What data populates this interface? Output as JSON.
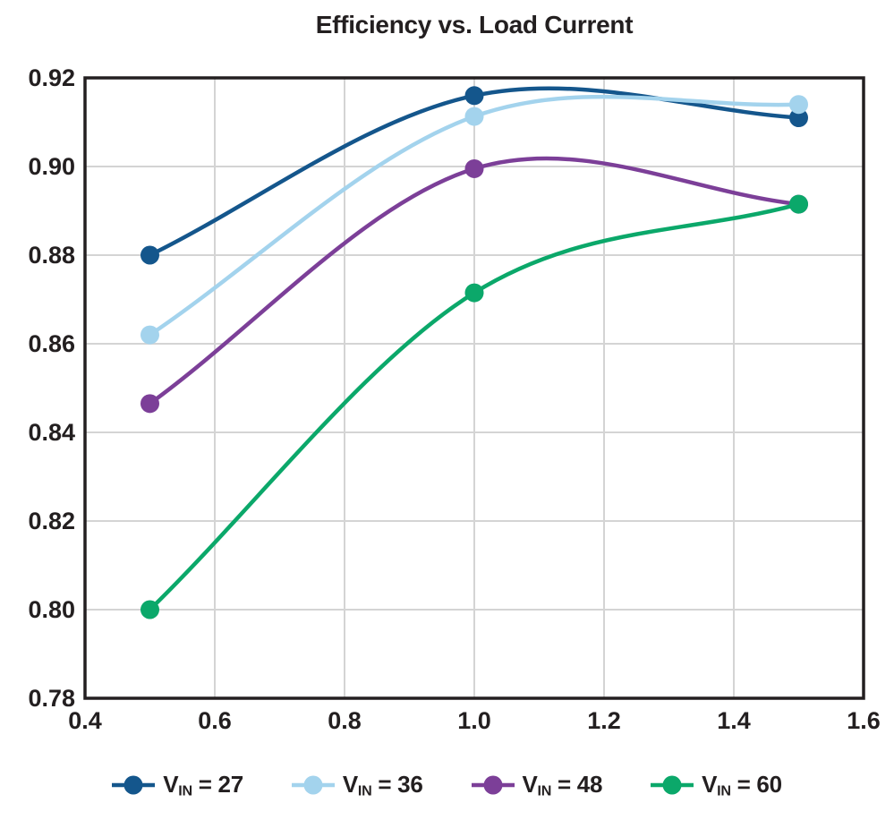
{
  "chart_data": {
    "type": "line",
    "title": "Efficiency vs. Load Current",
    "xlabel": "",
    "ylabel": "",
    "xlim": [
      0.4,
      1.6
    ],
    "ylim": [
      0.78,
      0.92
    ],
    "xtick_labels": [
      "0.4",
      "0.6",
      "0.8",
      "1.0",
      "1.2",
      "1.4",
      "1.6"
    ],
    "ytick_labels": [
      "0.78",
      "0.80",
      "0.82",
      "0.84",
      "0.86",
      "0.88",
      "0.90",
      "0.92"
    ],
    "grid": true,
    "legend_position": "bottom",
    "x": [
      0.5,
      1.0,
      1.5
    ],
    "series": [
      {
        "name": "VIN = 27",
        "legend": {
          "main": "V",
          "sub": "IN",
          "suffix": " = 27"
        },
        "color": "#14568c",
        "values": [
          0.88,
          0.916,
          0.911
        ]
      },
      {
        "name": "VIN = 36",
        "legend": {
          "main": "V",
          "sub": "IN",
          "suffix": " = 36"
        },
        "color": "#a3d3ed",
        "values": [
          0.862,
          0.9113,
          0.914
        ]
      },
      {
        "name": "VIN = 48",
        "legend": {
          "main": "V",
          "sub": "IN",
          "suffix": " = 48"
        },
        "color": "#7c3f98",
        "values": [
          0.8465,
          0.8995,
          0.8915
        ]
      },
      {
        "name": "VIN = 60",
        "legend": {
          "main": "V",
          "sub": "IN",
          "suffix": " = 60"
        },
        "color": "#0ba86a",
        "values": [
          0.8,
          0.8715,
          0.8915
        ]
      }
    ],
    "style": {
      "axis_color": "#231f20",
      "grid_color": "#d4d4d4",
      "text_color": "#231f20",
      "background": "#ffffff",
      "line_width": 4.5,
      "marker_radius": 10.5,
      "border_width": 3.5
    }
  }
}
